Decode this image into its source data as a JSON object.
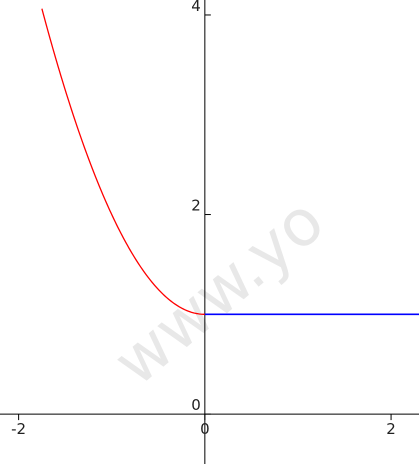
{
  "watermark": "www.yo",
  "chart_data": {
    "type": "line",
    "xlim": [
      -2.2,
      2.3
    ],
    "ylim": [
      -0.5,
      4.15
    ],
    "x_ticks": [
      -2,
      0,
      2
    ],
    "x_tick_labels": [
      "-2",
      "0",
      "2"
    ],
    "y_ticks": [
      0,
      2,
      4
    ],
    "y_tick_labels": [
      "0",
      "2",
      "4"
    ],
    "grid": false,
    "series": [
      {
        "color": "#ff0000",
        "points": [
          [
            -1.75,
            4.06
          ],
          [
            -1.5,
            3.25
          ],
          [
            -1.25,
            2.56
          ],
          [
            -1.0,
            2.0
          ],
          [
            -0.75,
            1.56
          ],
          [
            -0.5,
            1.25
          ],
          [
            -0.25,
            1.06
          ],
          [
            0.0,
            1.0
          ]
        ]
      },
      {
        "color": "#0000ff",
        "points": [
          [
            0.0,
            1.0
          ],
          [
            2.3,
            1.0
          ]
        ]
      }
    ]
  }
}
